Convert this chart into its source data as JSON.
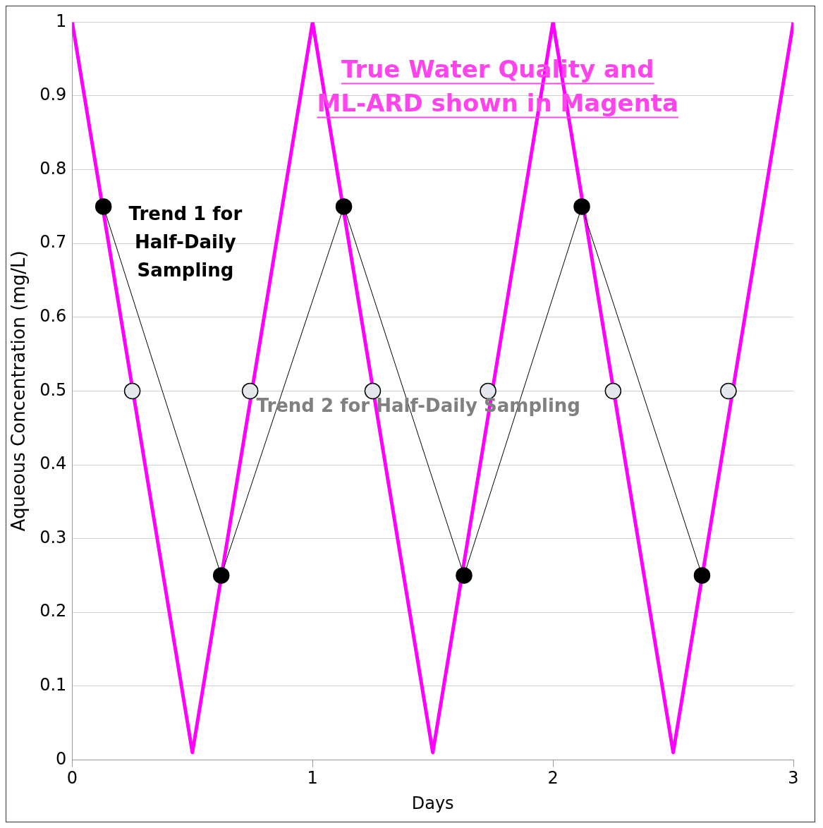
{
  "chart_data": {
    "type": "line",
    "xlabel": "Days",
    "ylabel": "Aqueous Concentration (mg/L)",
    "xlim": [
      0,
      3
    ],
    "xticks": [
      0,
      1,
      2,
      3
    ],
    "ylim": [
      0,
      1
    ],
    "yticks": [
      0,
      {
        "value": 0.1,
        "label": "0.1"
      },
      {
        "value": 0.2,
        "label": "0.2"
      },
      {
        "value": 0.3,
        "label": "0.3"
      },
      {
        "value": 0.4,
        "label": "0.4"
      },
      {
        "value": 0.5,
        "label": "0.5"
      },
      {
        "value": 0.6,
        "label": "0.6"
      },
      {
        "value": 0.7,
        "label": "0.7"
      },
      {
        "value": 0.8,
        "label": "0.8"
      },
      {
        "value": 0.9,
        "label": "0.9"
      },
      1
    ],
    "grid": "y",
    "legend": false,
    "series": [
      {
        "color": "#ff00ff",
        "marker": "none",
        "x": [
          0,
          0.5,
          1,
          1.5,
          2,
          2.5,
          3
        ],
        "values": [
          1,
          0.01,
          1,
          0.01,
          1,
          0.01,
          1
        ]
      },
      {
        "color": "#000000",
        "marker": "circle",
        "x": [
          0.13,
          0.62,
          1.13,
          1.63,
          2.12,
          2.62
        ],
        "values": [
          0.75,
          0.25,
          0.75,
          0.25,
          0.75,
          0.25
        ]
      },
      {
        "type": "scatter",
        "color": "#e4e8ec",
        "marker": "circle",
        "x": [
          0.25,
          0.74,
          1.25,
          1.73,
          2.25,
          2.73
        ],
        "values": [
          0.5,
          0.5,
          0.5,
          0.5,
          0.5,
          0.5
        ]
      }
    ],
    "annotations": [
      "True Water Quality and\nML-ARD shown in Magenta",
      "Trend 1 for\nHalf-Daily\nSampling",
      "Trend 2 for Half-Daily Sampling"
    ]
  }
}
